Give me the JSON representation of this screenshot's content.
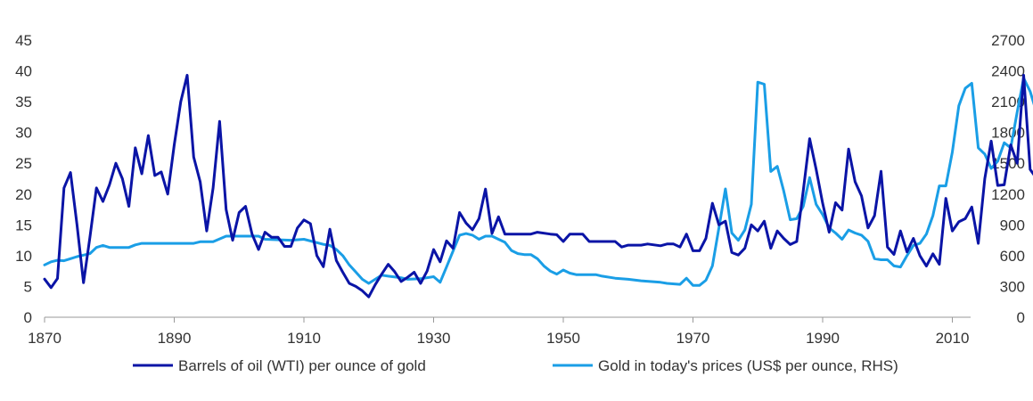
{
  "chart_data": {
    "type": "line",
    "title": "",
    "xlabel": "",
    "ylabel": "",
    "y2label": "",
    "grid": false,
    "legend_position": "bottom",
    "x_ticks": [
      1870,
      1890,
      1910,
      1930,
      1950,
      1970,
      1990,
      2010
    ],
    "xlim": [
      1870,
      2024
    ],
    "ylim": [
      0,
      45
    ],
    "y_ticks": [
      0,
      5,
      10,
      15,
      20,
      25,
      30,
      35,
      40,
      45
    ],
    "y2lim": [
      0,
      2700
    ],
    "y2_ticks": [
      0,
      300,
      600,
      900,
      1200,
      1500,
      1800,
      2100,
      2400,
      2700
    ],
    "series": [
      {
        "name": "Barrels of oil (WTI) per ounce of gold",
        "axis": "left",
        "color": "#0a14a6",
        "points": [
          [
            1870,
            6.2
          ],
          [
            1871,
            4.8
          ],
          [
            1872,
            6.3
          ],
          [
            1873,
            21
          ],
          [
            1874,
            23.5
          ],
          [
            1875,
            15
          ],
          [
            1876,
            5.6
          ],
          [
            1877,
            13
          ],
          [
            1878,
            21
          ],
          [
            1879,
            18.8
          ],
          [
            1880,
            21.5
          ],
          [
            1881,
            25
          ],
          [
            1882,
            22.5
          ],
          [
            1883,
            18
          ],
          [
            1884,
            27.5
          ],
          [
            1885,
            23.3
          ],
          [
            1886,
            29.5
          ],
          [
            1887,
            23
          ],
          [
            1888,
            23.6
          ],
          [
            1889,
            20
          ],
          [
            1890,
            28
          ],
          [
            1891,
            35
          ],
          [
            1892,
            39.3
          ],
          [
            1893,
            26
          ],
          [
            1894,
            22
          ],
          [
            1895,
            14
          ],
          [
            1896,
            21
          ],
          [
            1897,
            31.8
          ],
          [
            1898,
            17.5
          ],
          [
            1899,
            12.5
          ],
          [
            1900,
            17
          ],
          [
            1901,
            18
          ],
          [
            1902,
            13.5
          ],
          [
            1903,
            11
          ],
          [
            1904,
            13.8
          ],
          [
            1905,
            13
          ],
          [
            1906,
            13
          ],
          [
            1907,
            11.5
          ],
          [
            1908,
            11.5
          ],
          [
            1909,
            14.5
          ],
          [
            1910,
            15.8
          ],
          [
            1911,
            15.2
          ],
          [
            1912,
            10
          ],
          [
            1913,
            8.2
          ],
          [
            1914,
            14.3
          ],
          [
            1915,
            9.2
          ],
          [
            1916,
            7.3
          ],
          [
            1917,
            5.5
          ],
          [
            1918,
            5
          ],
          [
            1919,
            4.3
          ],
          [
            1920,
            3.3
          ],
          [
            1921,
            5.3
          ],
          [
            1922,
            7
          ],
          [
            1923,
            8.6
          ],
          [
            1924,
            7.4
          ],
          [
            1925,
            5.8
          ],
          [
            1926,
            6.5
          ],
          [
            1927,
            7.3
          ],
          [
            1928,
            5.5
          ],
          [
            1929,
            7.5
          ],
          [
            1930,
            11
          ],
          [
            1931,
            9
          ],
          [
            1932,
            12.4
          ],
          [
            1933,
            11.2
          ],
          [
            1934,
            17
          ],
          [
            1935,
            15.3
          ],
          [
            1936,
            14.2
          ],
          [
            1937,
            16
          ],
          [
            1938,
            20.8
          ],
          [
            1939,
            13.6
          ],
          [
            1940,
            16.3
          ],
          [
            1941,
            13.5
          ],
          [
            1945,
            13.5
          ],
          [
            1946,
            13.8
          ],
          [
            1948,
            13.5
          ],
          [
            1949,
            13.4
          ],
          [
            1950,
            12.3
          ],
          [
            1951,
            13.5
          ],
          [
            1953,
            13.5
          ],
          [
            1954,
            12.3
          ],
          [
            1958,
            12.3
          ],
          [
            1959,
            11.4
          ],
          [
            1960,
            11.7
          ],
          [
            1962,
            11.7
          ],
          [
            1963,
            11.9
          ],
          [
            1965,
            11.6
          ],
          [
            1966,
            11.9
          ],
          [
            1967,
            11.9
          ],
          [
            1968,
            11.4
          ],
          [
            1969,
            13.5
          ],
          [
            1970,
            10.8
          ],
          [
            1971,
            10.8
          ],
          [
            1972,
            12.8
          ],
          [
            1973,
            18.5
          ],
          [
            1974,
            15
          ],
          [
            1975,
            15.6
          ],
          [
            1976,
            10.5
          ],
          [
            1977,
            10.1
          ],
          [
            1978,
            11.2
          ],
          [
            1979,
            15
          ],
          [
            1980,
            14
          ],
          [
            1981,
            15.6
          ],
          [
            1982,
            11.2
          ],
          [
            1983,
            14
          ],
          [
            1984,
            12.8
          ],
          [
            1985,
            11.8
          ],
          [
            1986,
            12.3
          ],
          [
            1987,
            20.5
          ],
          [
            1988,
            29
          ],
          [
            1989,
            24
          ],
          [
            1990,
            18.5
          ],
          [
            1991,
            13.8
          ],
          [
            1992,
            18.6
          ],
          [
            1993,
            17.4
          ],
          [
            1994,
            27.3
          ],
          [
            1995,
            22
          ],
          [
            1996,
            19.7
          ],
          [
            1997,
            14.5
          ],
          [
            1998,
            16.5
          ],
          [
            1999,
            23.7
          ],
          [
            2000,
            11.4
          ],
          [
            2001,
            10.2
          ],
          [
            2002,
            14
          ],
          [
            2003,
            10.6
          ],
          [
            2004,
            12.8
          ],
          [
            2005,
            10
          ],
          [
            2006,
            8.3
          ],
          [
            2007,
            10.3
          ],
          [
            2008,
            8.6
          ],
          [
            2009,
            19.3
          ],
          [
            2010,
            14
          ],
          [
            2011,
            15.5
          ],
          [
            2012,
            16
          ],
          [
            2013,
            17.9
          ],
          [
            2014,
            12
          ],
          [
            2015,
            22.5
          ],
          [
            2016,
            28.6
          ],
          [
            2017,
            21.4
          ],
          [
            2018,
            21.5
          ],
          [
            2019,
            28
          ],
          [
            2020,
            25
          ],
          [
            2021,
            39.3
          ],
          [
            2022,
            24
          ],
          [
            2023,
            22.5
          ],
          [
            2024,
            29.5
          ],
          [
            2025,
            37.8
          ]
        ]
      },
      {
        "name": "Gold in today's prices (US$ per ounce, RHS)",
        "axis": "right",
        "color": "#1a9ee6",
        "points": [
          [
            1870,
            510
          ],
          [
            1871,
            540
          ],
          [
            1872,
            555
          ],
          [
            1873,
            550
          ],
          [
            1874,
            570
          ],
          [
            1875,
            590
          ],
          [
            1876,
            605
          ],
          [
            1877,
            620
          ],
          [
            1878,
            680
          ],
          [
            1879,
            700
          ],
          [
            1880,
            680
          ],
          [
            1883,
            680
          ],
          [
            1884,
            705
          ],
          [
            1885,
            720
          ],
          [
            1893,
            720
          ],
          [
            1894,
            735
          ],
          [
            1896,
            735
          ],
          [
            1898,
            790
          ],
          [
            1903,
            790
          ],
          [
            1904,
            760
          ],
          [
            1908,
            750
          ],
          [
            1910,
            760
          ],
          [
            1913,
            710
          ],
          [
            1914,
            700
          ],
          [
            1915,
            660
          ],
          [
            1916,
            600
          ],
          [
            1917,
            510
          ],
          [
            1918,
            440
          ],
          [
            1919,
            370
          ],
          [
            1920,
            330
          ],
          [
            1921,
            370
          ],
          [
            1922,
            410
          ],
          [
            1923,
            400
          ],
          [
            1925,
            385
          ],
          [
            1926,
            370
          ],
          [
            1928,
            375
          ],
          [
            1930,
            395
          ],
          [
            1931,
            340
          ],
          [
            1932,
            490
          ],
          [
            1934,
            800
          ],
          [
            1935,
            815
          ],
          [
            1936,
            800
          ],
          [
            1937,
            760
          ],
          [
            1938,
            790
          ],
          [
            1939,
            790
          ],
          [
            1940,
            760
          ],
          [
            1941,
            730
          ],
          [
            1942,
            650
          ],
          [
            1943,
            620
          ],
          [
            1944,
            610
          ],
          [
            1945,
            610
          ],
          [
            1946,
            570
          ],
          [
            1947,
            500
          ],
          [
            1948,
            450
          ],
          [
            1949,
            420
          ],
          [
            1950,
            460
          ],
          [
            1951,
            430
          ],
          [
            1952,
            415
          ],
          [
            1955,
            415
          ],
          [
            1956,
            400
          ],
          [
            1958,
            380
          ],
          [
            1960,
            370
          ],
          [
            1962,
            355
          ],
          [
            1965,
            340
          ],
          [
            1966,
            330
          ],
          [
            1968,
            320
          ],
          [
            1969,
            380
          ],
          [
            1970,
            310
          ],
          [
            1971,
            310
          ],
          [
            1972,
            360
          ],
          [
            1973,
            500
          ],
          [
            1974,
            870
          ],
          [
            1975,
            1250
          ],
          [
            1976,
            820
          ],
          [
            1977,
            750
          ],
          [
            1978,
            850
          ],
          [
            1979,
            1100
          ],
          [
            1980,
            2290
          ],
          [
            1981,
            2270
          ],
          [
            1982,
            1420
          ],
          [
            1983,
            1470
          ],
          [
            1984,
            1230
          ],
          [
            1985,
            950
          ],
          [
            1986,
            960
          ],
          [
            1987,
            1080
          ],
          [
            1988,
            1360
          ],
          [
            1989,
            1100
          ],
          [
            1990,
            1000
          ],
          [
            1991,
            870
          ],
          [
            1992,
            820
          ],
          [
            1993,
            760
          ],
          [
            1994,
            850
          ],
          [
            1995,
            820
          ],
          [
            1996,
            800
          ],
          [
            1997,
            740
          ],
          [
            1998,
            570
          ],
          [
            1999,
            560
          ],
          [
            2000,
            560
          ],
          [
            2001,
            500
          ],
          [
            2002,
            490
          ],
          [
            2003,
            600
          ],
          [
            2004,
            700
          ],
          [
            2005,
            720
          ],
          [
            2006,
            810
          ],
          [
            2007,
            990
          ],
          [
            2008,
            1280
          ],
          [
            2009,
            1280
          ],
          [
            2010,
            1610
          ],
          [
            2011,
            2060
          ],
          [
            2012,
            2230
          ],
          [
            2013,
            2280
          ],
          [
            2014,
            1650
          ],
          [
            2015,
            1590
          ],
          [
            2016,
            1450
          ],
          [
            2017,
            1520
          ],
          [
            2018,
            1700
          ],
          [
            2019,
            1650
          ],
          [
            2020,
            2000
          ],
          [
            2021,
            2330
          ],
          [
            2022,
            2200
          ],
          [
            2023,
            1990
          ],
          [
            2024,
            2150
          ],
          [
            2025,
            2660
          ]
        ]
      }
    ]
  }
}
